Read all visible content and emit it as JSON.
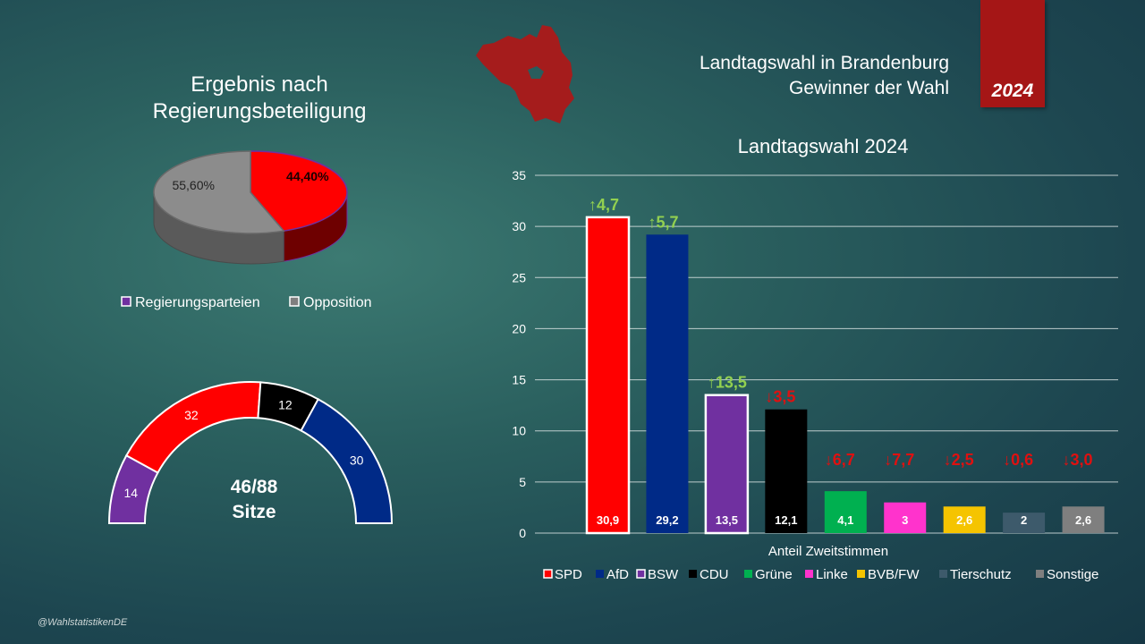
{
  "pie_title": "Ergebnis nach Regierungsbeteiligung",
  "main_title": "Landtagswahl in Brandenburg",
  "main_subtitle": "Gewinner der Wahl",
  "year_badge": "2024",
  "copyright": "@WahlstatistikenDE",
  "colors": {
    "SPD": "#ff0000",
    "AfD": "#002a87",
    "BSW": "#7030a0",
    "CDU": "#000000",
    "Grüne": "#00b050",
    "Linke": "#ff33cc",
    "BVB/FW": "#f5c400",
    "Tierschutz": "#3d5a6b",
    "Sonstige": "#7f7f7f",
    "gain": "#92d050",
    "loss": "#e01010",
    "map": "#a51c1c"
  },
  "chart_data": [
    {
      "type": "pie",
      "title": "Ergebnis nach Regierungsbeteiligung",
      "categories": [
        "Regierungsparteien",
        "Opposition"
      ],
      "values": [
        44.4,
        55.6
      ],
      "labels": [
        "44,40%",
        "55,60%"
      ],
      "legend": [
        "Regierungsparteien",
        "Opposition"
      ],
      "legend_position": "bottom"
    },
    {
      "type": "pie",
      "title": "",
      "center_label": [
        "46/88",
        "Sitze"
      ],
      "categories": [
        "BSW",
        "SPD",
        "CDU",
        "AfD"
      ],
      "values": [
        14,
        32,
        12,
        30
      ]
    },
    {
      "type": "bar",
      "title": "Landtagswahl 2024",
      "xlabel": "Anteil Zweitstimmen",
      "ylabel": "",
      "ylim": [
        0,
        35
      ],
      "yticks": [
        0,
        5,
        10,
        15,
        20,
        25,
        30,
        35
      ],
      "grid": true,
      "legend_position": "bottom",
      "categories": [
        "SPD",
        "AfD",
        "BSW",
        "CDU",
        "Grüne",
        "Linke",
        "BVB/FW",
        "Tierschutz",
        "Sonstige"
      ],
      "values": [
        30.9,
        29.2,
        13.5,
        12.1,
        4.1,
        3,
        2.6,
        2,
        2.6
      ],
      "value_labels": [
        "30,9",
        "29,2",
        "13,5",
        "12,1",
        "4,1",
        "3",
        "2,6",
        "2",
        "2,6"
      ],
      "changes": [
        "↑4,7",
        "↑5,7",
        "↑13,5",
        "↓3,5",
        "↓6,7",
        "↓7,7",
        "↓2,5",
        "↓0,6",
        "↓3,0"
      ],
      "change_direction": [
        "up",
        "up",
        "up",
        "down",
        "down",
        "down",
        "down",
        "down",
        "down"
      ]
    }
  ]
}
